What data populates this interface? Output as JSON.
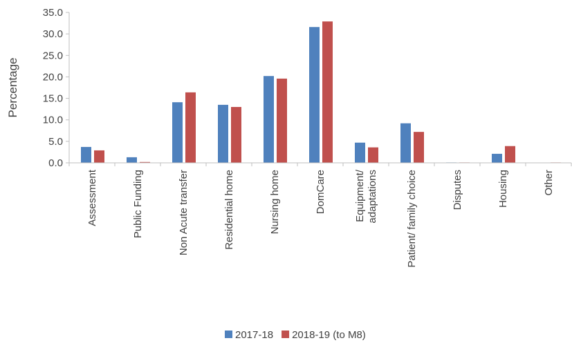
{
  "chart_data": {
    "type": "bar",
    "y_label": "Percentage",
    "categories": [
      "Assessment",
      "Public Funding",
      "Non Acute transfer",
      "Residential home",
      "Nursing home",
      "DomCare",
      "Equipment/\nadaptations",
      "Patient/ family choice",
      "Disputes",
      "Housing",
      "Other"
    ],
    "series": [
      {
        "name": "2017-18",
        "color": "#4f81bd",
        "values": [
          3.7,
          1.3,
          14.1,
          13.5,
          20.2,
          31.6,
          4.7,
          9.2,
          0.1,
          2.1,
          0
        ]
      },
      {
        "name": "2018-19 (to M8)",
        "color": "#c0504d",
        "values": [
          2.9,
          0.2,
          16.4,
          13.0,
          19.6,
          32.9,
          3.6,
          7.2,
          0.1,
          3.9,
          0.1
        ]
      }
    ],
    "ylim": [
      0,
      35
    ],
    "yticks": [
      {
        "value": 0,
        "label": "0.0"
      },
      {
        "value": 5,
        "label": "5.0"
      },
      {
        "value": 10,
        "label": "10.0"
      },
      {
        "value": 15,
        "label": "15.0"
      },
      {
        "value": 20,
        "label": "20.0"
      },
      {
        "value": 25,
        "label": "25.0"
      },
      {
        "value": 30,
        "label": "30.0"
      },
      {
        "value": 35,
        "label": "35.0"
      }
    ],
    "legend": "bottom"
  }
}
